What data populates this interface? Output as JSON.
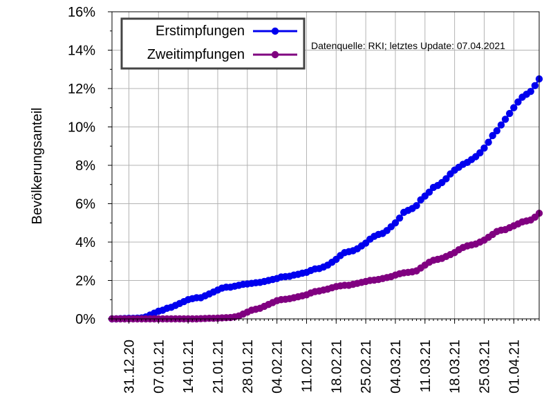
{
  "chart_data": {
    "type": "line",
    "title": "",
    "xlabel": "",
    "ylabel": "Bevölkerungsanteil",
    "ylim": [
      0,
      16
    ],
    "xlim": [
      "2020-12-27",
      "2021-04-07"
    ],
    "y_ticks": [
      "0%",
      "2%",
      "4%",
      "6%",
      "8%",
      "10%",
      "12%",
      "14%",
      "16%"
    ],
    "x_ticks": [
      "31.12.20",
      "07.01.21",
      "14.01.21",
      "21.01.21",
      "28.01.21",
      "04.02.21",
      "11.02.21",
      "18.02.21",
      "25.02.21",
      "04.03.21",
      "11.03.21",
      "18.03.21",
      "25.03.21",
      "01.04.21"
    ],
    "grid": true,
    "legend_position": "top-left",
    "annotation": "Datenquelle: RKI; letztes Update: 07.04.2021",
    "series": [
      {
        "name": "Erstimpfungen",
        "color": "#0000ee",
        "points": [
          [
            "2020-12-27",
            0.0
          ],
          [
            "2020-12-28",
            0.0
          ],
          [
            "2020-12-29",
            0.01
          ],
          [
            "2020-12-30",
            0.02
          ],
          [
            "2020-12-31",
            0.03
          ],
          [
            "2021-01-01",
            0.03
          ],
          [
            "2021-01-02",
            0.04
          ],
          [
            "2021-01-03",
            0.05
          ],
          [
            "2021-01-04",
            0.1
          ],
          [
            "2021-01-05",
            0.2
          ],
          [
            "2021-01-06",
            0.3
          ],
          [
            "2021-01-07",
            0.4
          ],
          [
            "2021-01-08",
            0.45
          ],
          [
            "2021-01-09",
            0.55
          ],
          [
            "2021-01-10",
            0.6
          ],
          [
            "2021-01-11",
            0.7
          ],
          [
            "2021-01-12",
            0.8
          ],
          [
            "2021-01-13",
            0.9
          ],
          [
            "2021-01-14",
            1.0
          ],
          [
            "2021-01-15",
            1.05
          ],
          [
            "2021-01-16",
            1.1
          ],
          [
            "2021-01-17",
            1.1
          ],
          [
            "2021-01-18",
            1.2
          ],
          [
            "2021-01-19",
            1.3
          ],
          [
            "2021-01-20",
            1.4
          ],
          [
            "2021-01-21",
            1.5
          ],
          [
            "2021-01-22",
            1.6
          ],
          [
            "2021-01-23",
            1.65
          ],
          [
            "2021-01-24",
            1.65
          ],
          [
            "2021-01-25",
            1.7
          ],
          [
            "2021-01-26",
            1.75
          ],
          [
            "2021-01-27",
            1.8
          ],
          [
            "2021-01-28",
            1.82
          ],
          [
            "2021-01-29",
            1.85
          ],
          [
            "2021-01-30",
            1.88
          ],
          [
            "2021-01-31",
            1.9
          ],
          [
            "2021-02-01",
            1.95
          ],
          [
            "2021-02-02",
            2.0
          ],
          [
            "2021-02-03",
            2.05
          ],
          [
            "2021-02-04",
            2.1
          ],
          [
            "2021-02-05",
            2.18
          ],
          [
            "2021-02-06",
            2.2
          ],
          [
            "2021-02-07",
            2.22
          ],
          [
            "2021-02-08",
            2.28
          ],
          [
            "2021-02-09",
            2.32
          ],
          [
            "2021-02-10",
            2.38
          ],
          [
            "2021-02-11",
            2.42
          ],
          [
            "2021-02-12",
            2.52
          ],
          [
            "2021-02-13",
            2.6
          ],
          [
            "2021-02-14",
            2.62
          ],
          [
            "2021-02-15",
            2.7
          ],
          [
            "2021-02-16",
            2.8
          ],
          [
            "2021-02-17",
            2.95
          ],
          [
            "2021-02-18",
            3.1
          ],
          [
            "2021-02-19",
            3.3
          ],
          [
            "2021-02-20",
            3.45
          ],
          [
            "2021-02-21",
            3.5
          ],
          [
            "2021-02-22",
            3.55
          ],
          [
            "2021-02-23",
            3.65
          ],
          [
            "2021-02-24",
            3.8
          ],
          [
            "2021-02-25",
            3.95
          ],
          [
            "2021-02-26",
            4.15
          ],
          [
            "2021-02-27",
            4.3
          ],
          [
            "2021-02-28",
            4.4
          ],
          [
            "2021-03-01",
            4.45
          ],
          [
            "2021-03-02",
            4.6
          ],
          [
            "2021-03-03",
            4.8
          ],
          [
            "2021-03-04",
            5.0
          ],
          [
            "2021-03-05",
            5.25
          ],
          [
            "2021-03-06",
            5.55
          ],
          [
            "2021-03-07",
            5.65
          ],
          [
            "2021-03-08",
            5.75
          ],
          [
            "2021-03-09",
            5.9
          ],
          [
            "2021-03-10",
            6.2
          ],
          [
            "2021-03-11",
            6.4
          ],
          [
            "2021-03-12",
            6.6
          ],
          [
            "2021-03-13",
            6.85
          ],
          [
            "2021-03-14",
            6.95
          ],
          [
            "2021-03-15",
            7.1
          ],
          [
            "2021-03-16",
            7.3
          ],
          [
            "2021-03-17",
            7.55
          ],
          [
            "2021-03-18",
            7.75
          ],
          [
            "2021-03-19",
            7.9
          ],
          [
            "2021-03-20",
            8.05
          ],
          [
            "2021-03-21",
            8.15
          ],
          [
            "2021-03-22",
            8.3
          ],
          [
            "2021-03-23",
            8.45
          ],
          [
            "2021-03-24",
            8.65
          ],
          [
            "2021-03-25",
            8.9
          ],
          [
            "2021-03-26",
            9.2
          ],
          [
            "2021-03-27",
            9.55
          ],
          [
            "2021-03-28",
            9.8
          ],
          [
            "2021-03-29",
            10.1
          ],
          [
            "2021-03-30",
            10.4
          ],
          [
            "2021-03-31",
            10.7
          ],
          [
            "2021-04-01",
            11.0
          ],
          [
            "2021-04-02",
            11.3
          ],
          [
            "2021-04-03",
            11.55
          ],
          [
            "2021-04-04",
            11.7
          ],
          [
            "2021-04-05",
            11.85
          ],
          [
            "2021-04-06",
            12.15
          ],
          [
            "2021-04-07",
            12.5
          ]
        ]
      },
      {
        "name": "Zweitimpfungen",
        "color": "#800080",
        "points": [
          [
            "2020-12-27",
            0.0
          ],
          [
            "2020-12-28",
            0.0
          ],
          [
            "2020-12-29",
            0.0
          ],
          [
            "2020-12-30",
            0.0
          ],
          [
            "2020-12-31",
            0.0
          ],
          [
            "2021-01-01",
            0.0
          ],
          [
            "2021-01-02",
            0.0
          ],
          [
            "2021-01-03",
            0.0
          ],
          [
            "2021-01-04",
            0.0
          ],
          [
            "2021-01-05",
            0.0
          ],
          [
            "2021-01-06",
            0.0
          ],
          [
            "2021-01-07",
            0.0
          ],
          [
            "2021-01-08",
            0.0
          ],
          [
            "2021-01-09",
            0.0
          ],
          [
            "2021-01-10",
            0.0
          ],
          [
            "2021-01-11",
            0.0
          ],
          [
            "2021-01-12",
            0.0
          ],
          [
            "2021-01-13",
            0.0
          ],
          [
            "2021-01-14",
            0.0
          ],
          [
            "2021-01-15",
            0.0
          ],
          [
            "2021-01-16",
            0.0
          ],
          [
            "2021-01-17",
            0.01
          ],
          [
            "2021-01-18",
            0.02
          ],
          [
            "2021-01-19",
            0.03
          ],
          [
            "2021-01-20",
            0.03
          ],
          [
            "2021-01-21",
            0.04
          ],
          [
            "2021-01-22",
            0.05
          ],
          [
            "2021-01-23",
            0.06
          ],
          [
            "2021-01-24",
            0.07
          ],
          [
            "2021-01-25",
            0.1
          ],
          [
            "2021-01-26",
            0.15
          ],
          [
            "2021-01-27",
            0.25
          ],
          [
            "2021-01-28",
            0.35
          ],
          [
            "2021-01-29",
            0.45
          ],
          [
            "2021-01-30",
            0.5
          ],
          [
            "2021-01-31",
            0.55
          ],
          [
            "2021-02-01",
            0.65
          ],
          [
            "2021-02-02",
            0.75
          ],
          [
            "2021-02-03",
            0.85
          ],
          [
            "2021-02-04",
            0.95
          ],
          [
            "2021-02-05",
            1.0
          ],
          [
            "2021-02-06",
            1.02
          ],
          [
            "2021-02-07",
            1.05
          ],
          [
            "2021-02-08",
            1.1
          ],
          [
            "2021-02-09",
            1.15
          ],
          [
            "2021-02-10",
            1.2
          ],
          [
            "2021-02-11",
            1.25
          ],
          [
            "2021-02-12",
            1.35
          ],
          [
            "2021-02-13",
            1.42
          ],
          [
            "2021-02-14",
            1.45
          ],
          [
            "2021-02-15",
            1.5
          ],
          [
            "2021-02-16",
            1.55
          ],
          [
            "2021-02-17",
            1.62
          ],
          [
            "2021-02-18",
            1.68
          ],
          [
            "2021-02-19",
            1.72
          ],
          [
            "2021-02-20",
            1.75
          ],
          [
            "2021-02-21",
            1.75
          ],
          [
            "2021-02-22",
            1.8
          ],
          [
            "2021-02-23",
            1.85
          ],
          [
            "2021-02-24",
            1.9
          ],
          [
            "2021-02-25",
            1.95
          ],
          [
            "2021-02-26",
            2.0
          ],
          [
            "2021-02-27",
            2.02
          ],
          [
            "2021-02-28",
            2.05
          ],
          [
            "2021-03-01",
            2.1
          ],
          [
            "2021-03-02",
            2.15
          ],
          [
            "2021-03-03",
            2.2
          ],
          [
            "2021-03-04",
            2.28
          ],
          [
            "2021-03-05",
            2.35
          ],
          [
            "2021-03-06",
            2.4
          ],
          [
            "2021-03-07",
            2.42
          ],
          [
            "2021-03-08",
            2.45
          ],
          [
            "2021-03-09",
            2.5
          ],
          [
            "2021-03-10",
            2.65
          ],
          [
            "2021-03-11",
            2.8
          ],
          [
            "2021-03-12",
            2.95
          ],
          [
            "2021-03-13",
            3.05
          ],
          [
            "2021-03-14",
            3.1
          ],
          [
            "2021-03-15",
            3.15
          ],
          [
            "2021-03-16",
            3.25
          ],
          [
            "2021-03-17",
            3.35
          ],
          [
            "2021-03-18",
            3.45
          ],
          [
            "2021-03-19",
            3.6
          ],
          [
            "2021-03-20",
            3.72
          ],
          [
            "2021-03-21",
            3.8
          ],
          [
            "2021-03-22",
            3.85
          ],
          [
            "2021-03-23",
            3.9
          ],
          [
            "2021-03-24",
            4.0
          ],
          [
            "2021-03-25",
            4.1
          ],
          [
            "2021-03-26",
            4.25
          ],
          [
            "2021-03-27",
            4.4
          ],
          [
            "2021-03-28",
            4.55
          ],
          [
            "2021-03-29",
            4.62
          ],
          [
            "2021-03-30",
            4.65
          ],
          [
            "2021-03-31",
            4.75
          ],
          [
            "2021-04-01",
            4.85
          ],
          [
            "2021-04-02",
            4.95
          ],
          [
            "2021-04-03",
            5.05
          ],
          [
            "2021-04-04",
            5.1
          ],
          [
            "2021-04-05",
            5.15
          ],
          [
            "2021-04-06",
            5.3
          ],
          [
            "2021-04-07",
            5.5
          ]
        ]
      }
    ]
  }
}
